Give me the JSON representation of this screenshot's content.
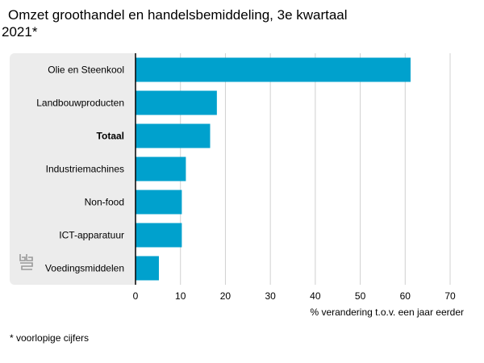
{
  "title": {
    "line1": "Omzet groothandel en handelsbemiddeling, 3e kwartaal",
    "line2": "2021*"
  },
  "footnote": "* voorlopige cijfers",
  "logo_icon": "cbs-logo-icon",
  "colors": {
    "bar": "#00a1cd",
    "panel": "#ececec",
    "grid": "#d0d0d0",
    "axis": "#000000"
  },
  "chart_data": {
    "type": "bar",
    "orientation": "horizontal",
    "categories": [
      "Olie en Steenkool",
      "Landbouwproducten",
      "Totaal",
      "Industriemachines",
      "Non-food",
      "ICT-apparatuur",
      "Voedingsmiddelen"
    ],
    "bold_categories": [
      "Totaal"
    ],
    "values": [
      61.2,
      18.1,
      16.6,
      11.2,
      10.3,
      10.3,
      5.2
    ],
    "xlabel": "% verandering t.o.v. een jaar eerder",
    "xlim": [
      0,
      70
    ],
    "xticks": [
      0,
      10,
      20,
      30,
      40,
      50,
      60,
      70
    ],
    "grid": true,
    "legend": "none"
  }
}
